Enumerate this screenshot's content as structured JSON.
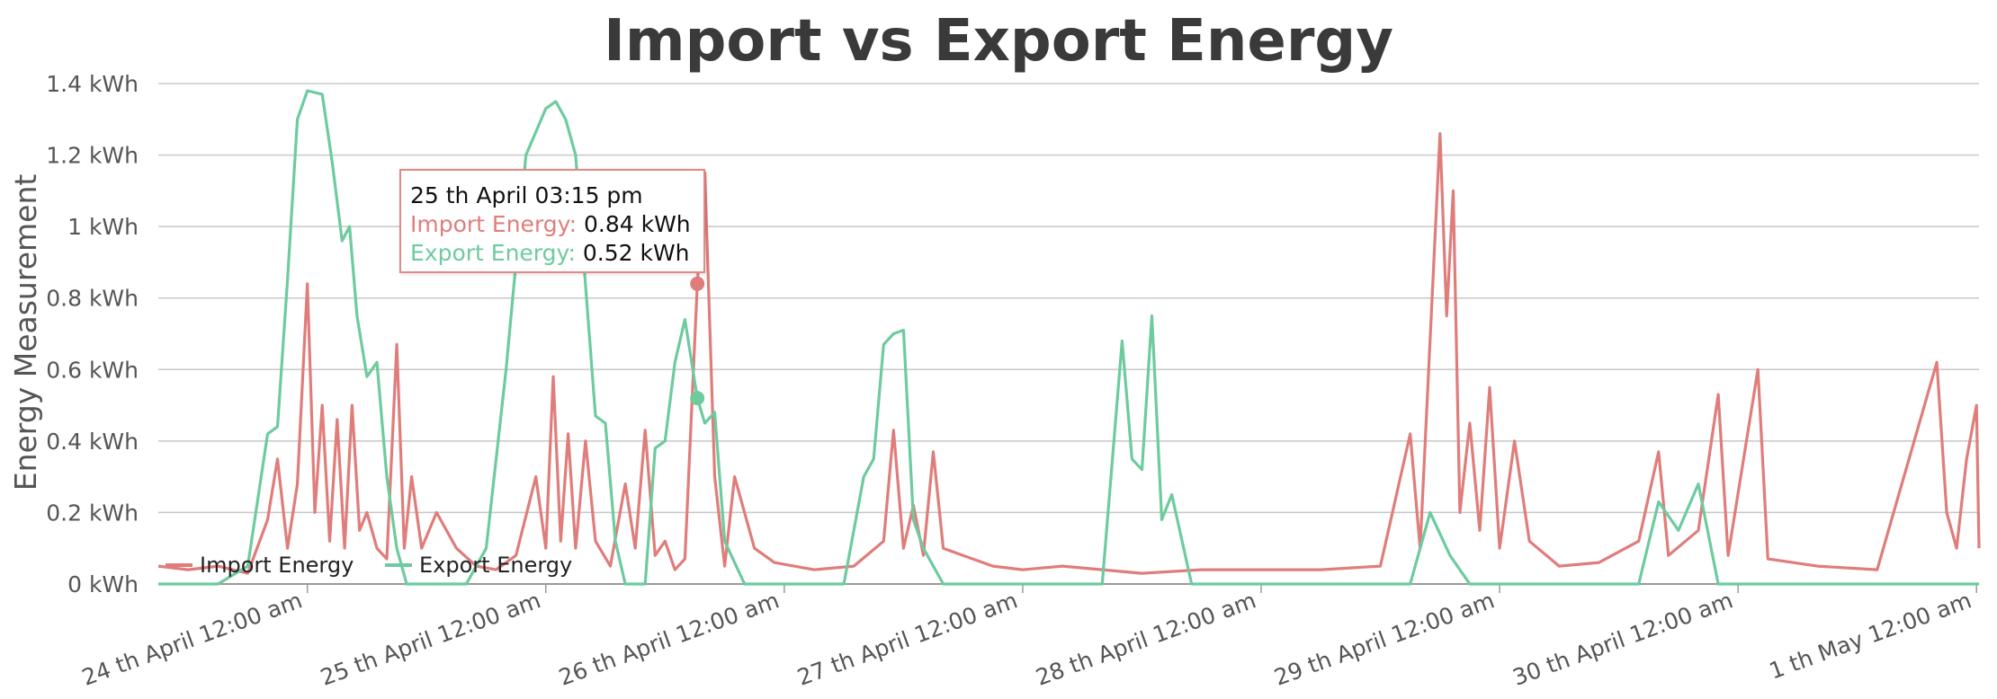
{
  "chart_data": {
    "type": "line",
    "title": "Import vs Export Energy",
    "ylabel": "Energy Measurement",
    "ylim": [
      0,
      1.4
    ],
    "y_ticks": [
      "0 kWh",
      "0.2 kWh",
      "0.4 kWh",
      "0.6 kWh",
      "0.8 kWh",
      "1 kWh",
      "1.2 kWh",
      "1.4 kWh"
    ],
    "x_ticks": [
      "24 th April 12:00 am",
      "25 th April 12:00 am",
      "26 th April 12:00 am",
      "27 th April 12:00 am",
      "28 th April 12:00 am",
      "29 th April 12:00 am",
      "30 th April 12:00 am",
      "1 th May 12:00 am"
    ],
    "xlim": [
      "2023-04-23T09:00",
      "2023-05-01T00:15"
    ],
    "grid": true,
    "legend_position": "bottom-left",
    "series": [
      {
        "name": "Import Energy",
        "color": "#df7d7b",
        "points": [
          [
            "2023-04-23T09:00",
            0.05
          ],
          [
            "2023-04-23T12:00",
            0.04
          ],
          [
            "2023-04-23T15:00",
            0.05
          ],
          [
            "2023-04-23T18:00",
            0.03
          ],
          [
            "2023-04-23T20:00",
            0.18
          ],
          [
            "2023-04-23T21:00",
            0.35
          ],
          [
            "2023-04-23T22:00",
            0.1
          ],
          [
            "2023-04-23T23:00",
            0.28
          ],
          [
            "2023-04-24T00:00",
            0.84
          ],
          [
            "2023-04-24T00:45",
            0.2
          ],
          [
            "2023-04-24T01:30",
            0.5
          ],
          [
            "2023-04-24T02:15",
            0.12
          ],
          [
            "2023-04-24T03:00",
            0.46
          ],
          [
            "2023-04-24T03:45",
            0.1
          ],
          [
            "2023-04-24T04:30",
            0.5
          ],
          [
            "2023-04-24T05:15",
            0.15
          ],
          [
            "2023-04-24T06:00",
            0.2
          ],
          [
            "2023-04-24T07:00",
            0.1
          ],
          [
            "2023-04-24T08:00",
            0.07
          ],
          [
            "2023-04-24T09:00",
            0.67
          ],
          [
            "2023-04-24T09:45",
            0.1
          ],
          [
            "2023-04-24T10:30",
            0.3
          ],
          [
            "2023-04-24T11:30",
            0.1
          ],
          [
            "2023-04-24T13:00",
            0.2
          ],
          [
            "2023-04-24T15:00",
            0.1
          ],
          [
            "2023-04-24T17:00",
            0.05
          ],
          [
            "2023-04-24T19:00",
            0.04
          ],
          [
            "2023-04-24T21:00",
            0.08
          ],
          [
            "2023-04-24T23:00",
            0.3
          ],
          [
            "2023-04-25T00:00",
            0.1
          ],
          [
            "2023-04-25T00:45",
            0.58
          ],
          [
            "2023-04-25T01:30",
            0.12
          ],
          [
            "2023-04-25T02:15",
            0.42
          ],
          [
            "2023-04-25T03:00",
            0.1
          ],
          [
            "2023-04-25T04:00",
            0.4
          ],
          [
            "2023-04-25T05:00",
            0.12
          ],
          [
            "2023-04-25T06:30",
            0.05
          ],
          [
            "2023-04-25T08:00",
            0.28
          ],
          [
            "2023-04-25T09:00",
            0.1
          ],
          [
            "2023-04-25T10:00",
            0.43
          ],
          [
            "2023-04-25T11:00",
            0.08
          ],
          [
            "2023-04-25T12:00",
            0.12
          ],
          [
            "2023-04-25T13:00",
            0.04
          ],
          [
            "2023-04-25T14:00",
            0.07
          ],
          [
            "2023-04-25T15:15",
            0.84
          ],
          [
            "2023-04-25T16:00",
            1.15
          ],
          [
            "2023-04-25T17:00",
            0.3
          ],
          [
            "2023-04-25T18:00",
            0.05
          ],
          [
            "2023-04-25T19:00",
            0.3
          ],
          [
            "2023-04-25T21:00",
            0.1
          ],
          [
            "2023-04-25T23:00",
            0.06
          ],
          [
            "2023-04-26T03:00",
            0.04
          ],
          [
            "2023-04-26T07:00",
            0.05
          ],
          [
            "2023-04-26T10:00",
            0.12
          ],
          [
            "2023-04-26T11:00",
            0.43
          ],
          [
            "2023-04-26T12:00",
            0.1
          ],
          [
            "2023-04-26T13:00",
            0.22
          ],
          [
            "2023-04-26T14:00",
            0.08
          ],
          [
            "2023-04-26T15:00",
            0.37
          ],
          [
            "2023-04-26T16:00",
            0.1
          ],
          [
            "2023-04-26T18:00",
            0.08
          ],
          [
            "2023-04-26T21:00",
            0.05
          ],
          [
            "2023-04-27T00:00",
            0.04
          ],
          [
            "2023-04-27T04:00",
            0.05
          ],
          [
            "2023-04-27T08:00",
            0.04
          ],
          [
            "2023-04-27T12:00",
            0.03
          ],
          [
            "2023-04-27T18:00",
            0.04
          ],
          [
            "2023-04-28T00:00",
            0.04
          ],
          [
            "2023-04-28T06:00",
            0.04
          ],
          [
            "2023-04-28T12:00",
            0.05
          ],
          [
            "2023-04-28T15:00",
            0.42
          ],
          [
            "2023-04-28T16:00",
            0.1
          ],
          [
            "2023-04-28T18:00",
            1.26
          ],
          [
            "2023-04-28T18:40",
            0.75
          ],
          [
            "2023-04-28T19:20",
            1.1
          ],
          [
            "2023-04-28T20:00",
            0.2
          ],
          [
            "2023-04-28T21:00",
            0.45
          ],
          [
            "2023-04-28T22:00",
            0.15
          ],
          [
            "2023-04-28T23:00",
            0.55
          ],
          [
            "2023-04-29T00:00",
            0.1
          ],
          [
            "2023-04-29T01:30",
            0.4
          ],
          [
            "2023-04-29T03:00",
            0.12
          ],
          [
            "2023-04-29T06:00",
            0.05
          ],
          [
            "2023-04-29T10:00",
            0.06
          ],
          [
            "2023-04-29T14:00",
            0.12
          ],
          [
            "2023-04-29T16:00",
            0.37
          ],
          [
            "2023-04-29T17:00",
            0.08
          ],
          [
            "2023-04-29T20:00",
            0.15
          ],
          [
            "2023-04-29T22:00",
            0.53
          ],
          [
            "2023-04-29T23:00",
            0.08
          ],
          [
            "2023-04-30T02:00",
            0.6
          ],
          [
            "2023-04-30T03:00",
            0.07
          ],
          [
            "2023-04-30T08:00",
            0.05
          ],
          [
            "2023-04-30T14:00",
            0.04
          ],
          [
            "2023-04-30T20:00",
            0.62
          ],
          [
            "2023-04-30T21:00",
            0.2
          ],
          [
            "2023-04-30T22:00",
            0.1
          ],
          [
            "2023-04-30T23:00",
            0.35
          ],
          [
            "2023-05-01T00:00",
            0.5
          ],
          [
            "2023-05-01T00:15",
            0.1
          ]
        ]
      },
      {
        "name": "Export Energy",
        "color": "#6dcb9e",
        "points": [
          [
            "2023-04-23T09:00",
            0.0
          ],
          [
            "2023-04-23T15:00",
            0.0
          ],
          [
            "2023-04-23T18:00",
            0.05
          ],
          [
            "2023-04-23T20:00",
            0.42
          ],
          [
            "2023-04-23T21:00",
            0.44
          ],
          [
            "2023-04-23T22:00",
            0.85
          ],
          [
            "2023-04-23T23:00",
            1.3
          ],
          [
            "2023-04-24T00:00",
            1.38
          ],
          [
            "2023-04-24T01:30",
            1.37
          ],
          [
            "2023-04-24T02:30",
            1.18
          ],
          [
            "2023-04-24T03:30",
            0.96
          ],
          [
            "2023-04-24T04:15",
            1.0
          ],
          [
            "2023-04-24T05:00",
            0.75
          ],
          [
            "2023-04-24T06:00",
            0.58
          ],
          [
            "2023-04-24T07:00",
            0.62
          ],
          [
            "2023-04-24T08:00",
            0.3
          ],
          [
            "2023-04-24T09:00",
            0.1
          ],
          [
            "2023-04-24T10:00",
            0.0
          ],
          [
            "2023-04-24T16:00",
            0.0
          ],
          [
            "2023-04-24T18:00",
            0.1
          ],
          [
            "2023-04-24T20:00",
            0.6
          ],
          [
            "2023-04-24T22:00",
            1.2
          ],
          [
            "2023-04-25T00:00",
            1.33
          ],
          [
            "2023-04-25T01:00",
            1.35
          ],
          [
            "2023-04-25T02:00",
            1.3
          ],
          [
            "2023-04-25T03:00",
            1.2
          ],
          [
            "2023-04-25T05:00",
            0.47
          ],
          [
            "2023-04-25T06:00",
            0.45
          ],
          [
            "2023-04-25T07:00",
            0.12
          ],
          [
            "2023-04-25T08:00",
            0.0
          ],
          [
            "2023-04-25T10:00",
            0.0
          ],
          [
            "2023-04-25T11:00",
            0.38
          ],
          [
            "2023-04-25T12:00",
            0.4
          ],
          [
            "2023-04-25T13:00",
            0.62
          ],
          [
            "2023-04-25T14:00",
            0.74
          ],
          [
            "2023-04-25T15:15",
            0.52
          ],
          [
            "2023-04-25T16:00",
            0.45
          ],
          [
            "2023-04-25T17:00",
            0.48
          ],
          [
            "2023-04-25T18:00",
            0.12
          ],
          [
            "2023-04-25T20:00",
            0.0
          ],
          [
            "2023-04-26T06:00",
            0.0
          ],
          [
            "2023-04-26T08:00",
            0.3
          ],
          [
            "2023-04-26T09:00",
            0.35
          ],
          [
            "2023-04-26T10:00",
            0.67
          ],
          [
            "2023-04-26T11:00",
            0.7
          ],
          [
            "2023-04-26T12:00",
            0.71
          ],
          [
            "2023-04-26T13:00",
            0.18
          ],
          [
            "2023-04-26T14:00",
            0.1
          ],
          [
            "2023-04-26T16:00",
            0.0
          ],
          [
            "2023-04-27T08:00",
            0.0
          ],
          [
            "2023-04-27T10:00",
            0.68
          ],
          [
            "2023-04-27T11:00",
            0.35
          ],
          [
            "2023-04-27T12:00",
            0.32
          ],
          [
            "2023-04-27T13:00",
            0.75
          ],
          [
            "2023-04-27T14:00",
            0.18
          ],
          [
            "2023-04-27T15:00",
            0.25
          ],
          [
            "2023-04-27T17:00",
            0.0
          ],
          [
            "2023-04-28T15:00",
            0.0
          ],
          [
            "2023-04-28T17:00",
            0.2
          ],
          [
            "2023-04-28T19:00",
            0.08
          ],
          [
            "2023-04-28T21:00",
            0.0
          ],
          [
            "2023-04-29T14:00",
            0.0
          ],
          [
            "2023-04-29T16:00",
            0.23
          ],
          [
            "2023-04-29T18:00",
            0.15
          ],
          [
            "2023-04-29T20:00",
            0.28
          ],
          [
            "2023-04-29T22:00",
            0.0
          ],
          [
            "2023-05-01T00:15",
            0.0
          ]
        ]
      }
    ],
    "tooltip": {
      "title": "25 th April 03:15 pm",
      "import_label": "Import Energy:",
      "import_value": "0.84 kWh",
      "export_label": "Export Energy:",
      "export_value": "0.52 kWh"
    }
  }
}
